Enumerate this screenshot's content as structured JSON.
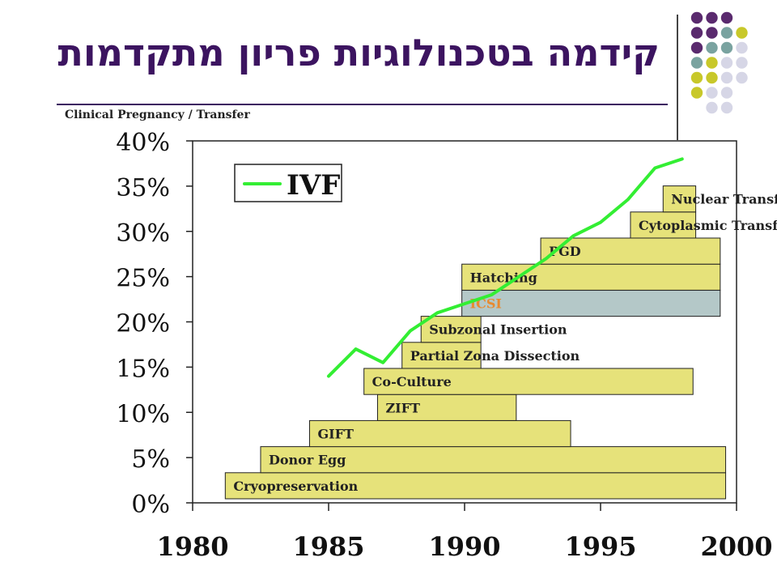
{
  "slide": {
    "title": "קידמה בטכנולוגיות פריון מתקדמות",
    "decor_colors": [
      "#5a2a6e",
      "#7aa3a0",
      "#c8c82a",
      "#d6d6e6"
    ]
  },
  "chart_data": {
    "type": "line",
    "ylabel": "Clinical Pregnancy / Transfer",
    "xlim": [
      1980,
      2000
    ],
    "ylim": [
      0,
      40
    ],
    "x_ticks": [
      "1980",
      "1985",
      "1990",
      "1995",
      "2000"
    ],
    "y_ticks": [
      "0%",
      "5%",
      "10%",
      "15%",
      "20%",
      "25%",
      "30%",
      "35%",
      "40%"
    ],
    "legend": {
      "label": "IVF",
      "position": "top-left"
    },
    "series": [
      {
        "name": "IVF",
        "color": "#33ee33",
        "x": [
          1985,
          1986,
          1987,
          1988,
          1989,
          1990,
          1991,
          1992,
          1993,
          1994,
          1995,
          1996,
          1997,
          1998
        ],
        "y": [
          14,
          17,
          15.5,
          19,
          21,
          22,
          23,
          25,
          27,
          29.5,
          31,
          33.5,
          37,
          38
        ]
      }
    ],
    "technologies": [
      {
        "label": "Cryopreservation",
        "start": 1981.2,
        "end": 1999.6,
        "level": 0,
        "color": "#e6e27a",
        "label_color": "#222222"
      },
      {
        "label": "Donor Egg",
        "start": 1982.5,
        "end": 1999.6,
        "level": 1,
        "color": "#e6e27a",
        "label_color": "#222222"
      },
      {
        "label": "GIFT",
        "start": 1984.3,
        "end": 1993.9,
        "level": 2,
        "color": "#e6e27a",
        "label_color": "#222222"
      },
      {
        "label": "ZIFT",
        "start": 1986.8,
        "end": 1991.9,
        "level": 3,
        "color": "#e6e27a",
        "label_color": "#222222"
      },
      {
        "label": "Co-Culture",
        "start": 1986.3,
        "end": 1998.4,
        "level": 4,
        "color": "#e6e27a",
        "label_color": "#222222"
      },
      {
        "label": "Partial Zona Dissection",
        "start": 1987.7,
        "end": 1990.6,
        "level": 5,
        "color": "#e6e27a",
        "label_color": "#222222"
      },
      {
        "label": "Subzonal Insertion",
        "start": 1988.4,
        "end": 1990.6,
        "level": 6,
        "color": "#e6e27a",
        "label_color": "#222222"
      },
      {
        "label": "ICSI",
        "start": 1989.9,
        "end": 1999.4,
        "level": 7,
        "color": "#b4c8c8",
        "label_color": "#e88a30"
      },
      {
        "label": "Hatching",
        "start": 1989.9,
        "end": 1999.4,
        "level": 8,
        "color": "#e6e27a",
        "label_color": "#222222"
      },
      {
        "label": "PGD",
        "start": 1992.8,
        "end": 1999.4,
        "level": 9,
        "color": "#e6e27a",
        "label_color": "#222222"
      },
      {
        "label": "Cytoplasmic Transfer",
        "start": 1996.1,
        "end": 1998.5,
        "level": 10,
        "color": "#e6e27a",
        "label_color": "#222222"
      },
      {
        "label": "Nuclear Transfer",
        "start": 1997.3,
        "end": 1998.5,
        "level": 11,
        "color": "#e6e27a",
        "label_color": "#222222"
      }
    ]
  }
}
